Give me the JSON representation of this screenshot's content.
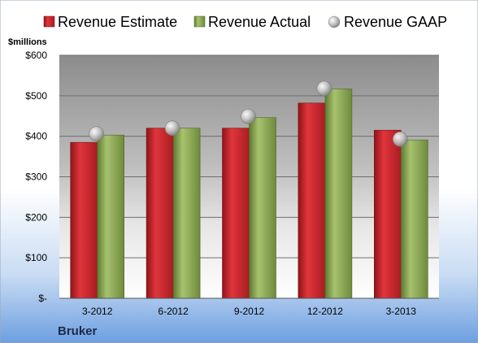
{
  "company": "Bruker",
  "chart_data": {
    "type": "bar",
    "ylabel": "$millions",
    "ylim": [
      0,
      600
    ],
    "yticks": [
      {
        "value": 0,
        "label": "$-"
      },
      {
        "value": 100,
        "label": "$100"
      },
      {
        "value": 200,
        "label": "$200"
      },
      {
        "value": 300,
        "label": "$300"
      },
      {
        "value": 400,
        "label": "$400"
      },
      {
        "value": 500,
        "label": "$500"
      },
      {
        "value": 600,
        "label": "$600"
      }
    ],
    "categories": [
      "3-2012",
      "6-2012",
      "9-2012",
      "12-2012",
      "3-2013"
    ],
    "series": [
      {
        "name": "Revenue Estimate",
        "kind": "bar",
        "color": "#c0282d",
        "values": [
          385,
          420,
          420,
          482,
          415
        ]
      },
      {
        "name": "Revenue Actual",
        "kind": "bar",
        "color": "#8aa651",
        "values": [
          403,
          420,
          446,
          517,
          391
        ]
      },
      {
        "name": "Revenue GAAP",
        "kind": "marker",
        "color": "#b0b0b0",
        "values": [
          406,
          420,
          449,
          518,
          393
        ]
      }
    ],
    "grid": true,
    "legend": "top"
  }
}
